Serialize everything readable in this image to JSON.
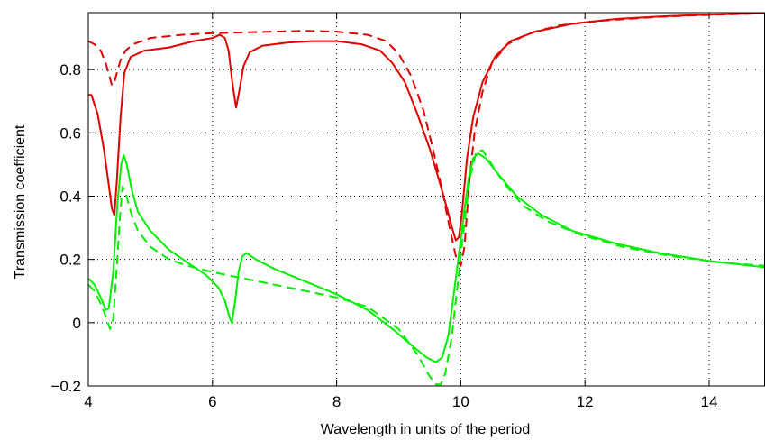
{
  "chart_data": {
    "type": "line",
    "title": "",
    "xlabel": "Wavelength in units of the period",
    "ylabel": "Transmission coefficient",
    "xlim": [
      4,
      14.9
    ],
    "ylim": [
      -0.2,
      0.98
    ],
    "xticks": [
      4,
      6,
      8,
      10,
      12,
      14
    ],
    "yticks": [
      -0.2,
      0,
      0.2,
      0.4,
      0.6,
      0.8
    ],
    "xtick_labels": [
      "4",
      "6",
      "8",
      "10",
      "12",
      "14"
    ],
    "ytick_labels": [
      "−0.2",
      "0",
      "0.2",
      "0.4",
      "0.6",
      "0.8"
    ],
    "grid": true,
    "legend": "none",
    "series": [
      {
        "color": "#e00000",
        "dash": "solid",
        "points": [
          [
            4.0,
            0.72
          ],
          [
            4.05,
            0.72
          ],
          [
            4.15,
            0.66
          ],
          [
            4.25,
            0.55
          ],
          [
            4.32,
            0.45
          ],
          [
            4.38,
            0.36
          ],
          [
            4.42,
            0.34
          ],
          [
            4.46,
            0.45
          ],
          [
            4.52,
            0.65
          ],
          [
            4.58,
            0.79
          ],
          [
            4.68,
            0.84
          ],
          [
            4.9,
            0.86
          ],
          [
            5.3,
            0.87
          ],
          [
            5.7,
            0.89
          ],
          [
            6.0,
            0.9
          ],
          [
            6.12,
            0.91
          ],
          [
            6.2,
            0.9
          ],
          [
            6.26,
            0.86
          ],
          [
            6.32,
            0.76
          ],
          [
            6.38,
            0.68
          ],
          [
            6.43,
            0.73
          ],
          [
            6.5,
            0.81
          ],
          [
            6.6,
            0.855
          ],
          [
            6.8,
            0.875
          ],
          [
            7.2,
            0.885
          ],
          [
            7.6,
            0.89
          ],
          [
            8.0,
            0.89
          ],
          [
            8.4,
            0.88
          ],
          [
            8.7,
            0.86
          ],
          [
            8.9,
            0.82
          ],
          [
            9.1,
            0.76
          ],
          [
            9.3,
            0.66
          ],
          [
            9.5,
            0.55
          ],
          [
            9.65,
            0.45
          ],
          [
            9.78,
            0.36
          ],
          [
            9.86,
            0.3
          ],
          [
            9.92,
            0.26
          ],
          [
            9.97,
            0.27
          ],
          [
            10.02,
            0.35
          ],
          [
            10.1,
            0.52
          ],
          [
            10.2,
            0.65
          ],
          [
            10.35,
            0.76
          ],
          [
            10.55,
            0.84
          ],
          [
            10.8,
            0.89
          ],
          [
            11.2,
            0.92
          ],
          [
            11.8,
            0.945
          ],
          [
            12.5,
            0.96
          ],
          [
            13.2,
            0.968
          ],
          [
            14.0,
            0.974
          ],
          [
            14.9,
            0.978
          ]
        ]
      },
      {
        "color": "#e00000",
        "dash": "dashed",
        "points": [
          [
            4.0,
            0.89
          ],
          [
            4.1,
            0.88
          ],
          [
            4.2,
            0.86
          ],
          [
            4.28,
            0.82
          ],
          [
            4.34,
            0.78
          ],
          [
            4.38,
            0.75
          ],
          [
            4.42,
            0.76
          ],
          [
            4.46,
            0.79
          ],
          [
            4.52,
            0.83
          ],
          [
            4.6,
            0.86
          ],
          [
            4.72,
            0.88
          ],
          [
            5.0,
            0.9
          ],
          [
            5.5,
            0.91
          ],
          [
            6.0,
            0.915
          ],
          [
            6.5,
            0.918
          ],
          [
            7.0,
            0.92
          ],
          [
            7.5,
            0.922
          ],
          [
            8.0,
            0.92
          ],
          [
            8.5,
            0.91
          ],
          [
            8.8,
            0.89
          ],
          [
            9.0,
            0.85
          ],
          [
            9.2,
            0.78
          ],
          [
            9.4,
            0.67
          ],
          [
            9.55,
            0.55
          ],
          [
            9.7,
            0.42
          ],
          [
            9.82,
            0.3
          ],
          [
            9.92,
            0.21
          ],
          [
            10.0,
            0.18
          ],
          [
            10.06,
            0.24
          ],
          [
            10.14,
            0.45
          ],
          [
            10.22,
            0.6
          ],
          [
            10.35,
            0.73
          ],
          [
            10.5,
            0.82
          ],
          [
            10.75,
            0.88
          ],
          [
            11.1,
            0.915
          ],
          [
            11.6,
            0.94
          ],
          [
            12.3,
            0.955
          ],
          [
            13.2,
            0.967
          ],
          [
            14.0,
            0.973
          ],
          [
            14.9,
            0.978
          ]
        ]
      },
      {
        "color": "#00ee00",
        "dash": "solid",
        "points": [
          [
            4.0,
            0.14
          ],
          [
            4.1,
            0.12
          ],
          [
            4.2,
            0.08
          ],
          [
            4.28,
            0.04
          ],
          [
            4.33,
            0.045
          ],
          [
            4.4,
            0.16
          ],
          [
            4.47,
            0.38
          ],
          [
            4.53,
            0.5
          ],
          [
            4.57,
            0.53
          ],
          [
            4.62,
            0.5
          ],
          [
            4.7,
            0.42
          ],
          [
            4.8,
            0.35
          ],
          [
            5.0,
            0.29
          ],
          [
            5.3,
            0.23
          ],
          [
            5.6,
            0.19
          ],
          [
            5.9,
            0.15
          ],
          [
            6.1,
            0.11
          ],
          [
            6.2,
            0.07
          ],
          [
            6.27,
            0.02
          ],
          [
            6.31,
            0.0
          ],
          [
            6.36,
            0.06
          ],
          [
            6.42,
            0.16
          ],
          [
            6.48,
            0.21
          ],
          [
            6.55,
            0.22
          ],
          [
            6.7,
            0.2
          ],
          [
            7.0,
            0.17
          ],
          [
            7.5,
            0.13
          ],
          [
            8.0,
            0.09
          ],
          [
            8.5,
            0.04
          ],
          [
            8.9,
            -0.02
          ],
          [
            9.2,
            -0.07
          ],
          [
            9.45,
            -0.11
          ],
          [
            9.6,
            -0.125
          ],
          [
            9.7,
            -0.11
          ],
          [
            9.8,
            -0.04
          ],
          [
            9.88,
            0.08
          ],
          [
            9.96,
            0.2
          ],
          [
            10.04,
            0.33
          ],
          [
            10.12,
            0.45
          ],
          [
            10.2,
            0.52
          ],
          [
            10.28,
            0.535
          ],
          [
            10.4,
            0.52
          ],
          [
            10.6,
            0.47
          ],
          [
            10.9,
            0.4
          ],
          [
            11.3,
            0.34
          ],
          [
            11.8,
            0.29
          ],
          [
            12.5,
            0.25
          ],
          [
            13.2,
            0.22
          ],
          [
            14.0,
            0.195
          ],
          [
            14.9,
            0.175
          ]
        ]
      },
      {
        "color": "#00ee00",
        "dash": "dashed",
        "points": [
          [
            4.0,
            0.12
          ],
          [
            4.1,
            0.1
          ],
          [
            4.2,
            0.06
          ],
          [
            4.28,
            0.02
          ],
          [
            4.35,
            -0.02
          ],
          [
            4.4,
            0.01
          ],
          [
            4.46,
            0.18
          ],
          [
            4.52,
            0.36
          ],
          [
            4.55,
            0.43
          ],
          [
            4.6,
            0.41
          ],
          [
            4.7,
            0.34
          ],
          [
            4.8,
            0.29
          ],
          [
            5.0,
            0.24
          ],
          [
            5.3,
            0.2
          ],
          [
            5.6,
            0.18
          ],
          [
            6.0,
            0.16
          ],
          [
            6.5,
            0.14
          ],
          [
            7.0,
            0.12
          ],
          [
            7.5,
            0.1
          ],
          [
            8.0,
            0.08
          ],
          [
            8.5,
            0.05
          ],
          [
            9.0,
            -0.02
          ],
          [
            9.3,
            -0.1
          ],
          [
            9.5,
            -0.17
          ],
          [
            9.6,
            -0.195
          ],
          [
            9.68,
            -0.195
          ],
          [
            9.75,
            -0.16
          ],
          [
            9.85,
            -0.05
          ],
          [
            9.95,
            0.12
          ],
          [
            10.05,
            0.3
          ],
          [
            10.15,
            0.46
          ],
          [
            10.25,
            0.54
          ],
          [
            10.35,
            0.545
          ],
          [
            10.5,
            0.5
          ],
          [
            10.7,
            0.44
          ],
          [
            11.0,
            0.37
          ],
          [
            11.4,
            0.32
          ],
          [
            11.9,
            0.28
          ],
          [
            12.6,
            0.24
          ],
          [
            13.4,
            0.21
          ],
          [
            14.2,
            0.19
          ],
          [
            14.9,
            0.18
          ]
        ]
      }
    ]
  }
}
